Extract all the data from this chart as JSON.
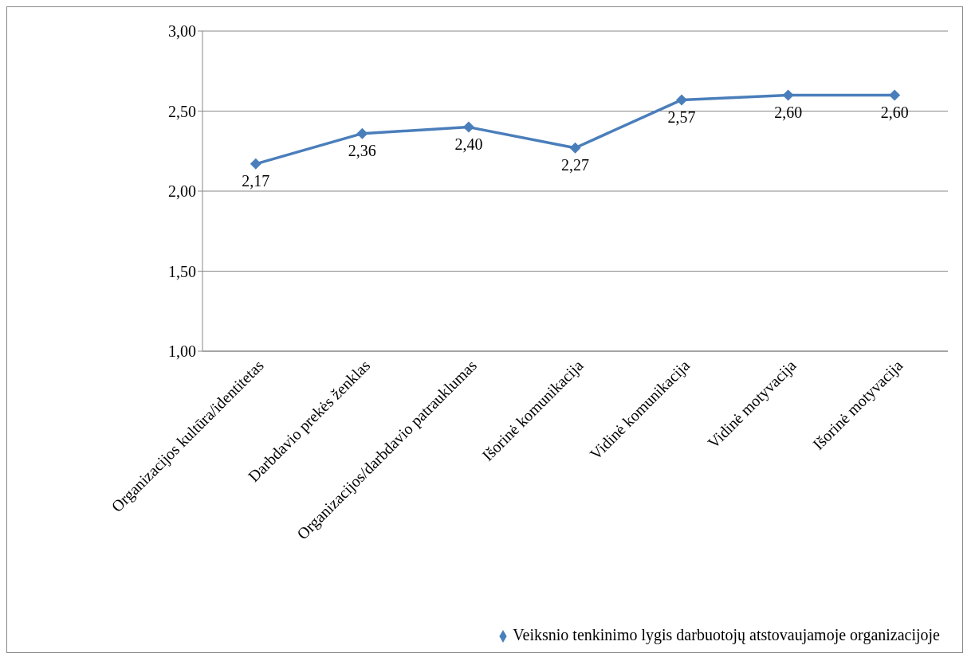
{
  "chart_data": {
    "type": "line",
    "categories": [
      "Organizacijos kultūra/identitetas",
      "Darbdavio prekės ženklas",
      "Organizacijos/darbdavio patrauklumas",
      "Išorinė komunikacija",
      "Vidinė komunikacija",
      "Vidinė motyvacija",
      "Išorinė motyvacija"
    ],
    "series": [
      {
        "name": "Veiksnio tenkinimo lygis darbuotojų atstovaujamoje organizacijoje",
        "color": "#4a7ebb",
        "values": [
          2.17,
          2.36,
          2.4,
          2.27,
          2.57,
          2.6,
          2.6
        ],
        "value_labels": [
          "2,17",
          "2,36",
          "2,40",
          "2,27",
          "2,57",
          "2,60",
          "2,60"
        ]
      }
    ],
    "ylim": [
      1,
      3
    ],
    "yticks": [
      {
        "value": 1,
        "label": "1,00"
      },
      {
        "value": 1.5,
        "label": "1,50"
      },
      {
        "value": 2,
        "label": "2,00"
      },
      {
        "value": 2.5,
        "label": "2,50"
      },
      {
        "value": 3,
        "label": "3,00"
      }
    ],
    "grid": "y",
    "legend": "bottom right",
    "marker": "diamond",
    "line_style": "solid"
  }
}
